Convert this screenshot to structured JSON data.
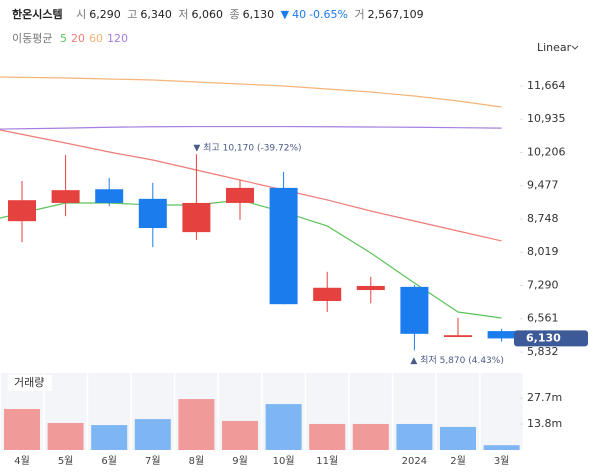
{
  "header": {
    "name": "한온시스템",
    "open_label": "시",
    "open": "6,290",
    "high_label": "고",
    "high": "6,340",
    "low_label": "저",
    "low": "6,060",
    "close_label": "종",
    "close": "6,130",
    "change_arrow": "▼",
    "change": "40",
    "change_pct": "-0.65%",
    "volume_label": "거",
    "volume": "2,567,109"
  },
  "ma_legend": {
    "label": "이동평균"
  },
  "scale_label": "Linear",
  "chart_data": [
    {
      "type": "candlestick",
      "categories": [
        "4월",
        "5월",
        "6월",
        "7월",
        "8월",
        "9월",
        "10월",
        "11월",
        null,
        "2024",
        "2월",
        "3월"
      ],
      "open": [
        8700,
        9100,
        9400,
        9190,
        8460,
        9100,
        9430,
        6950,
        7190,
        7260,
        6160,
        6290
      ],
      "high": [
        9580,
        10150,
        9650,
        9540,
        10170,
        9600,
        9780,
        7590,
        7480,
        7300,
        6580,
        6340
      ],
      "low": [
        8240,
        8810,
        9030,
        8130,
        8290,
        8730,
        6880,
        6710,
        6900,
        5870,
        6160,
        6060
      ],
      "close": [
        9160,
        9380,
        9100,
        8550,
        9100,
        9430,
        6880,
        7240,
        7280,
        6230,
        6200,
        6130
      ],
      "up_color": "#e5413e",
      "down_color": "#1b7cee",
      "ylim": [
        5744,
        12234
      ],
      "yticks": [
        {
          "value": 11664,
          "label": "11,664"
        },
        {
          "value": 10935,
          "label": "10,935"
        },
        {
          "value": 10206,
          "label": "10,206"
        },
        {
          "value": 9477,
          "label": "9,477"
        },
        {
          "value": 8748,
          "label": "8,748"
        },
        {
          "value": 8019,
          "label": "8,019"
        },
        {
          "value": 7290,
          "label": "7,290"
        },
        {
          "value": 6561,
          "label": "6,561"
        },
        {
          "value": 5832,
          "label": "5,832"
        }
      ],
      "series": [
        {
          "name": "5",
          "color": "#5cc35c",
          "values": [
            8770,
            9099,
            9099,
            9055,
            9055,
            9165,
            8901,
            8595,
            8003,
            7345,
            6709,
            6577
          ]
        },
        {
          "name": "20",
          "color": "#ef7b78",
          "values": [
            10699,
            10414,
            10217,
            10041,
            9822,
            9603,
            9384,
            9165,
            8923,
            8704,
            8485,
            8266
          ]
        },
        {
          "name": "60",
          "color": "#f3b57a",
          "values": [
            11861,
            11839,
            11817,
            11796,
            11752,
            11708,
            11664,
            11598,
            11532,
            11445,
            11335,
            11204
          ]
        },
        {
          "name": "120",
          "color": "#a47ee0",
          "values": [
            10720,
            10740,
            10760,
            10770,
            10775,
            10775,
            10775,
            10770,
            10765,
            10760,
            10750,
            10740
          ]
        }
      ],
      "annotations": {
        "max": "▼ 최고 10,170 (-39.72%)",
        "min": "▲ 최저 5,870 (4.43%)"
      }
    },
    {
      "type": "bar",
      "title": "거래량",
      "values": [
        21900000,
        14400000,
        13300000,
        16500000,
        27200000,
        15500000,
        24500000,
        13900000,
        13900000,
        13900000,
        12300000,
        2567109
      ],
      "colors": [
        "#f09a9a",
        "#f09a9a",
        "#7db6f2",
        "#7db6f2",
        "#f09a9a",
        "#f09a9a",
        "#7db6f2",
        "#f09a9a",
        "#f09a9a",
        "#7db6f2",
        "#7db6f2",
        "#7db6f2"
      ],
      "ylim": [
        0,
        41100000
      ],
      "yticks": [
        {
          "value": 27700000,
          "label": "27.7m"
        },
        {
          "value": 13800000,
          "label": "13.8m"
        }
      ]
    }
  ]
}
